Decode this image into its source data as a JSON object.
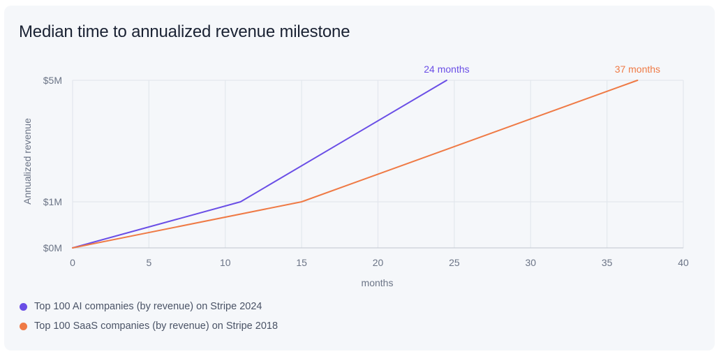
{
  "chart_data": {
    "type": "line",
    "title": "Median time to annualized revenue milestone",
    "xlabel": "months",
    "ylabel": "Annualized revenue",
    "xlim": [
      0,
      40
    ],
    "xticks": [
      0,
      5,
      10,
      15,
      20,
      25,
      30,
      35,
      40
    ],
    "yticks": [
      {
        "value": 0,
        "label": "$0M"
      },
      {
        "value": 1,
        "label": "$1M"
      },
      {
        "value": 5,
        "label": "$5M"
      }
    ],
    "grid": true,
    "legend_position": "bottom-left",
    "series": [
      {
        "name": "Top 100 AI companies (by revenue) on Stripe 2024",
        "color": "#6a4ee6",
        "points": [
          [
            0,
            0
          ],
          [
            11,
            1
          ],
          [
            24.5,
            5
          ]
        ],
        "end_label": "24 months"
      },
      {
        "name": "Top 100 SaaS companies (by revenue) on Stripe 2018",
        "color": "#ef7a45",
        "points": [
          [
            0,
            0
          ],
          [
            15,
            1
          ],
          [
            37,
            5
          ]
        ],
        "end_label": "37 months"
      }
    ]
  }
}
